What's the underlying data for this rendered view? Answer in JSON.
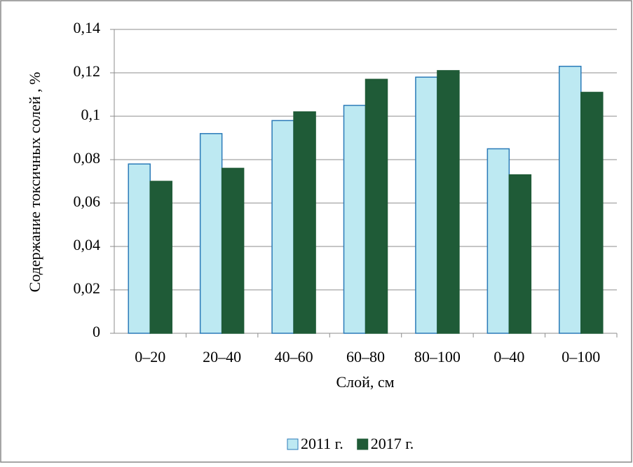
{
  "chart_data": {
    "type": "bar",
    "y_label": "Содержание токсичных солей , %",
    "x_label": "Слой, см",
    "categories": [
      "0–20",
      "20–40",
      "40–60",
      "60–80",
      "80–100",
      "0–40",
      "0–100"
    ],
    "series": [
      {
        "name": "2011 г.",
        "color": "#bde9f2",
        "values": [
          0.078,
          0.092,
          0.098,
          0.105,
          0.118,
          0.085,
          0.123
        ]
      },
      {
        "name": "2017 г.",
        "color": "#1f5b37",
        "values": [
          0.07,
          0.076,
          0.102,
          0.117,
          0.121,
          0.073,
          0.111
        ]
      }
    ],
    "ylim": [
      0,
      0.14
    ],
    "yticks": [
      0,
      {
        "value": 0.02,
        "label": "0,02"
      },
      {
        "value": 0.04,
        "label": "0,04"
      },
      {
        "value": 0.06,
        "label": "0,06"
      },
      {
        "value": 0.08,
        "label": "0,08"
      },
      {
        "value": 0.1,
        "label": "0,1"
      },
      {
        "value": 0.12,
        "label": "0,12"
      },
      {
        "value": 0.14,
        "label": "0,14"
      }
    ],
    "grid": true
  }
}
